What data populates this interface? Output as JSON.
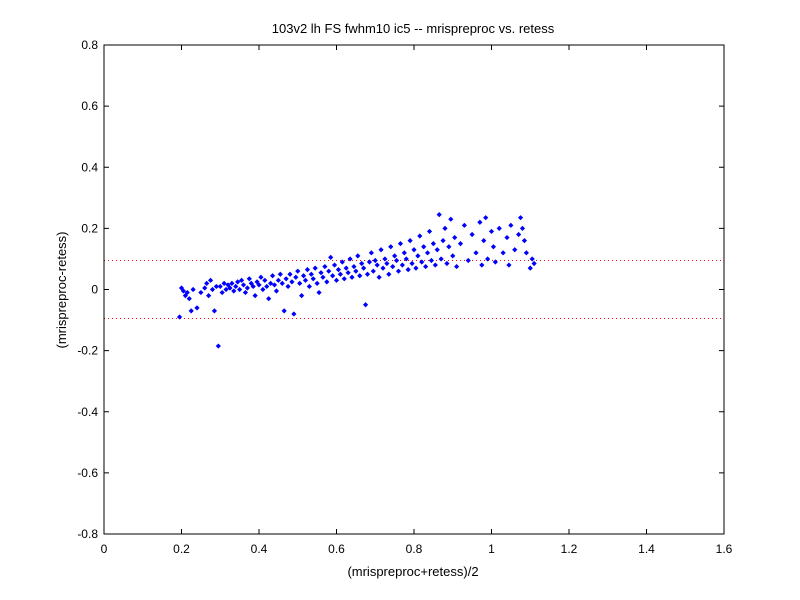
{
  "chart_data": {
    "type": "scatter",
    "title": "103v2 lh FS fwhm10 ic5 -- mrispreproc vs. retess",
    "xlabel": "(mrispreproc+retess)/2",
    "ylabel": "(mrispreproc-retess)",
    "xlim": [
      0,
      1.6
    ],
    "ylim": [
      -0.8,
      0.8
    ],
    "xticks": [
      0,
      0.2,
      0.4,
      0.6,
      0.8,
      1,
      1.2,
      1.4,
      1.6
    ],
    "xtick_labels": [
      "0",
      "0.2",
      "0.4",
      "0.6",
      "0.8",
      "1",
      "1.2",
      "1.4",
      "1.6"
    ],
    "yticks": [
      -0.8,
      -0.6,
      -0.4,
      -0.2,
      0,
      0.2,
      0.4,
      0.6,
      0.8
    ],
    "ytick_labels": [
      "-0.8",
      "-0.6",
      "-0.4",
      "-0.2",
      "0",
      "0.2",
      "0.4",
      "0.6",
      "0.8"
    ],
    "grid": false,
    "reference_lines": [
      {
        "y": 0.095,
        "style": "dotted",
        "color": "#ff0000"
      },
      {
        "y": -0.095,
        "style": "dotted",
        "color": "#ff0000"
      }
    ],
    "series": [
      {
        "color": "#0000ff",
        "marker": "diamond",
        "points": [
          [
            0.195,
            -0.09
          ],
          [
            0.2,
            0.005
          ],
          [
            0.205,
            -0.005
          ],
          [
            0.21,
            -0.02
          ],
          [
            0.215,
            -0.01
          ],
          [
            0.22,
            -0.03
          ],
          [
            0.225,
            -0.07
          ],
          [
            0.23,
            0.0
          ],
          [
            0.24,
            -0.06
          ],
          [
            0.25,
            -0.01
          ],
          [
            0.26,
            0.005
          ],
          [
            0.265,
            0.02
          ],
          [
            0.27,
            -0.02
          ],
          [
            0.275,
            0.03
          ],
          [
            0.28,
            0.0
          ],
          [
            0.285,
            -0.07
          ],
          [
            0.29,
            0.01
          ],
          [
            0.295,
            -0.185
          ],
          [
            0.3,
            0.01
          ],
          [
            0.305,
            -0.01
          ],
          [
            0.31,
            0.02
          ],
          [
            0.315,
            0.0
          ],
          [
            0.32,
            0.015
          ],
          [
            0.325,
            0.005
          ],
          [
            0.33,
            0.02
          ],
          [
            0.335,
            -0.005
          ],
          [
            0.34,
            0.01
          ],
          [
            0.345,
            0.025
          ],
          [
            0.35,
            0.0
          ],
          [
            0.355,
            0.03
          ],
          [
            0.36,
            0.015
          ],
          [
            0.365,
            -0.01
          ],
          [
            0.37,
            0.005
          ],
          [
            0.375,
            0.035
          ],
          [
            0.38,
            0.02
          ],
          [
            0.385,
            0.01
          ],
          [
            0.39,
            -0.02
          ],
          [
            0.395,
            0.025
          ],
          [
            0.4,
            0.015
          ],
          [
            0.405,
            0.04
          ],
          [
            0.41,
            0.0
          ],
          [
            0.415,
            0.03
          ],
          [
            0.42,
            0.01
          ],
          [
            0.425,
            -0.03
          ],
          [
            0.43,
            0.02
          ],
          [
            0.435,
            0.045
          ],
          [
            0.44,
            0.015
          ],
          [
            0.445,
            -0.005
          ],
          [
            0.45,
            0.03
          ],
          [
            0.455,
            0.05
          ],
          [
            0.46,
            0.02
          ],
          [
            0.465,
            -0.07
          ],
          [
            0.47,
            0.035
          ],
          [
            0.475,
            0.01
          ],
          [
            0.48,
            0.05
          ],
          [
            0.485,
            0.025
          ],
          [
            0.49,
            -0.08
          ],
          [
            0.495,
            0.04
          ],
          [
            0.5,
            0.06
          ],
          [
            0.505,
            0.02
          ],
          [
            0.51,
            -0.02
          ],
          [
            0.515,
            0.045
          ],
          [
            0.52,
            0.03
          ],
          [
            0.525,
            0.065
          ],
          [
            0.53,
            0.01
          ],
          [
            0.535,
            0.05
          ],
          [
            0.54,
            0.035
          ],
          [
            0.545,
            0.07
          ],
          [
            0.55,
            0.02
          ],
          [
            0.555,
            -0.01
          ],
          [
            0.56,
            0.055
          ],
          [
            0.565,
            0.04
          ],
          [
            0.57,
            0.075
          ],
          [
            0.575,
            0.025
          ],
          [
            0.58,
            0.06
          ],
          [
            0.585,
            0.105
          ],
          [
            0.59,
            0.045
          ],
          [
            0.595,
            0.08
          ],
          [
            0.6,
            0.03
          ],
          [
            0.605,
            0.065
          ],
          [
            0.61,
            0.05
          ],
          [
            0.615,
            0.09
          ],
          [
            0.62,
            0.035
          ],
          [
            0.625,
            0.07
          ],
          [
            0.63,
            0.055
          ],
          [
            0.635,
            0.1
          ],
          [
            0.64,
            0.04
          ],
          [
            0.645,
            0.075
          ],
          [
            0.65,
            0.06
          ],
          [
            0.655,
            0.11
          ],
          [
            0.66,
            0.045
          ],
          [
            0.665,
            0.085
          ],
          [
            0.67,
            0.07
          ],
          [
            0.675,
            -0.05
          ],
          [
            0.68,
            0.05
          ],
          [
            0.685,
            0.09
          ],
          [
            0.69,
            0.12
          ],
          [
            0.695,
            0.06
          ],
          [
            0.7,
            0.095
          ],
          [
            0.705,
            0.08
          ],
          [
            0.71,
            0.04
          ],
          [
            0.715,
            0.13
          ],
          [
            0.72,
            0.07
          ],
          [
            0.725,
            0.1
          ],
          [
            0.73,
            0.085
          ],
          [
            0.735,
            0.05
          ],
          [
            0.74,
            0.14
          ],
          [
            0.745,
            0.075
          ],
          [
            0.75,
            0.11
          ],
          [
            0.755,
            0.095
          ],
          [
            0.76,
            0.06
          ],
          [
            0.765,
            0.15
          ],
          [
            0.77,
            0.08
          ],
          [
            0.775,
            0.12
          ],
          [
            0.78,
            0.1
          ],
          [
            0.785,
            0.065
          ],
          [
            0.79,
            0.16
          ],
          [
            0.795,
            0.085
          ],
          [
            0.8,
            0.13
          ],
          [
            0.805,
            0.07
          ],
          [
            0.81,
            0.11
          ],
          [
            0.815,
            0.175
          ],
          [
            0.82,
            0.09
          ],
          [
            0.825,
            0.14
          ],
          [
            0.83,
            0.075
          ],
          [
            0.835,
            0.12
          ],
          [
            0.84,
            0.19
          ],
          [
            0.845,
            0.095
          ],
          [
            0.85,
            0.15
          ],
          [
            0.855,
            0.08
          ],
          [
            0.86,
            0.13
          ],
          [
            0.865,
            0.245
          ],
          [
            0.87,
            0.1
          ],
          [
            0.875,
            0.16
          ],
          [
            0.88,
            0.2
          ],
          [
            0.885,
            0.085
          ],
          [
            0.89,
            0.14
          ],
          [
            0.895,
            0.23
          ],
          [
            0.9,
            0.11
          ],
          [
            0.905,
            0.17
          ],
          [
            0.91,
            0.075
          ],
          [
            0.92,
            0.15
          ],
          [
            0.93,
            0.21
          ],
          [
            0.94,
            0.095
          ],
          [
            0.95,
            0.18
          ],
          [
            0.96,
            0.12
          ],
          [
            0.97,
            0.22
          ],
          [
            0.975,
            0.08
          ],
          [
            0.98,
            0.16
          ],
          [
            0.985,
            0.235
          ],
          [
            0.99,
            0.1
          ],
          [
            1.0,
            0.19
          ],
          [
            1.005,
            0.14
          ],
          [
            1.01,
            0.09
          ],
          [
            1.02,
            0.2
          ],
          [
            1.03,
            0.12
          ],
          [
            1.04,
            0.17
          ],
          [
            1.045,
            0.08
          ],
          [
            1.05,
            0.21
          ],
          [
            1.06,
            0.13
          ],
          [
            1.07,
            0.18
          ],
          [
            1.075,
            0.235
          ],
          [
            1.08,
            0.2
          ],
          [
            1.085,
            0.16
          ],
          [
            1.09,
            0.12
          ],
          [
            1.1,
            0.07
          ],
          [
            1.105,
            0.1
          ],
          [
            1.11,
            0.085
          ]
        ]
      }
    ]
  }
}
